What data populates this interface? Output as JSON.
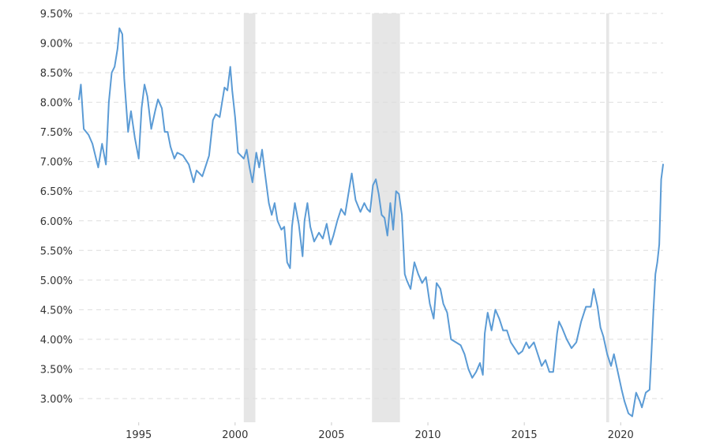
{
  "chart_data": {
    "type": "line",
    "title": "",
    "xlabel": "",
    "ylabel": "",
    "xlim": [
      1991.9,
      2022.2
    ],
    "ylim": [
      2.6,
      9.5
    ],
    "y_ticks": [
      3.0,
      3.5,
      4.0,
      4.5,
      5.0,
      5.5,
      6.0,
      6.5,
      7.0,
      7.5,
      8.0,
      8.5,
      9.0,
      9.5
    ],
    "y_tick_labels": [
      "3.00%",
      "3.50%",
      "4.00%",
      "4.50%",
      "5.00%",
      "5.50%",
      "6.00%",
      "6.50%",
      "7.00%",
      "7.50%",
      "8.00%",
      "8.50%",
      "9.00%",
      "9.50%"
    ],
    "x_ticks": [
      1995,
      2000,
      2005,
      2010,
      2015,
      2020
    ],
    "x_tick_labels": [
      "1995",
      "2000",
      "2005",
      "2010",
      "2015",
      "2020"
    ],
    "grid": true,
    "line_color": "#5b9bd5",
    "grid_color": "#dddddd",
    "shade_color": "#e6e6e6",
    "shaded_periods": [
      [
        2000.45,
        2001.05
      ],
      [
        2007.1,
        2008.55
      ],
      [
        2019.25,
        2019.4
      ]
    ],
    "series": [
      {
        "name": "",
        "x": [
          1991.9,
          1992.0,
          1992.15,
          1992.4,
          1992.6,
          1992.9,
          1993.1,
          1993.3,
          1993.45,
          1993.6,
          1993.75,
          1993.9,
          1994.0,
          1994.15,
          1994.25,
          1994.45,
          1994.6,
          1994.8,
          1995.0,
          1995.15,
          1995.3,
          1995.45,
          1995.65,
          1995.85,
          1996.0,
          1996.2,
          1996.35,
          1996.5,
          1996.65,
          1996.85,
          1997.0,
          1997.3,
          1997.6,
          1997.85,
          1998.0,
          1998.3,
          1998.5,
          1998.65,
          1998.85,
          1999.0,
          1999.2,
          1999.45,
          1999.6,
          1999.75,
          1999.85,
          2000.0,
          2000.15,
          2000.3,
          2000.45,
          2000.6,
          2000.75,
          2000.9,
          2001.1,
          2001.25,
          2001.4,
          2001.55,
          2001.75,
          2001.9,
          2002.05,
          2002.2,
          2002.4,
          2002.55,
          2002.7,
          2002.85,
          2002.95,
          2003.1,
          2003.3,
          2003.5,
          2003.6,
          2003.75,
          2003.9,
          2004.1,
          2004.35,
          2004.55,
          2004.75,
          2004.95,
          2005.1,
          2005.3,
          2005.5,
          2005.7,
          2005.85,
          2006.05,
          2006.25,
          2006.5,
          2006.7,
          2006.85,
          2007.0,
          2007.15,
          2007.3,
          2007.45,
          2007.6,
          2007.75,
          2007.9,
          2008.05,
          2008.2,
          2008.35,
          2008.5,
          2008.65,
          2008.8,
          2008.9,
          2009.1,
          2009.3,
          2009.5,
          2009.7,
          2009.9,
          2010.1,
          2010.3,
          2010.45,
          2010.65,
          2010.8,
          2011.0,
          2011.2,
          2011.45,
          2011.7,
          2011.9,
          2012.1,
          2012.3,
          2012.5,
          2012.7,
          2012.85,
          2012.95,
          2013.1,
          2013.3,
          2013.5,
          2013.7,
          2013.9,
          2014.1,
          2014.3,
          2014.5,
          2014.7,
          2014.9,
          2015.1,
          2015.25,
          2015.5,
          2015.7,
          2015.9,
          2016.1,
          2016.3,
          2016.5,
          2016.7,
          2016.8,
          2016.95,
          2017.2,
          2017.45,
          2017.7,
          2017.95,
          2018.2,
          2018.45,
          2018.6,
          2018.8,
          2018.95,
          2019.1,
          2019.3,
          2019.5,
          2019.65,
          2019.85,
          2020.05,
          2020.2,
          2020.4,
          2020.6,
          2020.8,
          2021.0,
          2021.1,
          2021.3,
          2021.5,
          2021.6,
          2021.7,
          2021.8,
          2021.9,
          2022.0,
          2022.1,
          2022.2
        ],
        "y": [
          8.05,
          8.3,
          7.55,
          7.45,
          7.3,
          6.9,
          7.3,
          6.95,
          8.0,
          8.5,
          8.6,
          8.9,
          9.25,
          9.15,
          8.4,
          7.5,
          7.85,
          7.4,
          7.05,
          7.9,
          8.3,
          8.1,
          7.55,
          7.85,
          8.05,
          7.9,
          7.5,
          7.5,
          7.25,
          7.05,
          7.15,
          7.1,
          6.95,
          6.65,
          6.85,
          6.75,
          6.95,
          7.1,
          7.7,
          7.8,
          7.75,
          8.25,
          8.2,
          8.6,
          8.2,
          7.75,
          7.15,
          7.1,
          7.05,
          7.2,
          6.9,
          6.65,
          7.15,
          6.9,
          7.2,
          6.8,
          6.3,
          6.1,
          6.3,
          6.0,
          5.85,
          5.9,
          5.3,
          5.2,
          5.9,
          6.3,
          5.95,
          5.4,
          6.0,
          6.3,
          5.9,
          5.65,
          5.8,
          5.7,
          5.95,
          5.6,
          5.75,
          6.0,
          6.2,
          6.1,
          6.4,
          6.8,
          6.35,
          6.15,
          6.3,
          6.2,
          6.15,
          6.6,
          6.7,
          6.45,
          6.1,
          6.05,
          5.75,
          6.3,
          5.85,
          6.5,
          6.45,
          6.1,
          5.1,
          5.0,
          4.85,
          5.3,
          5.1,
          4.95,
          5.05,
          4.6,
          4.35,
          4.95,
          4.85,
          4.6,
          4.45,
          4.0,
          3.95,
          3.9,
          3.75,
          3.5,
          3.35,
          3.45,
          3.6,
          3.4,
          4.1,
          4.45,
          4.15,
          4.5,
          4.35,
          4.15,
          4.15,
          3.95,
          3.85,
          3.75,
          3.8,
          3.95,
          3.85,
          3.95,
          3.75,
          3.55,
          3.65,
          3.45,
          3.45,
          4.1,
          4.3,
          4.2,
          4.0,
          3.85,
          3.95,
          4.3,
          4.55,
          4.55,
          4.85,
          4.55,
          4.2,
          4.05,
          3.75,
          3.55,
          3.75,
          3.45,
          3.15,
          2.95,
          2.75,
          2.7,
          3.1,
          2.95,
          2.85,
          3.1,
          3.15,
          3.8,
          4.5,
          5.1,
          5.3,
          5.6,
          6.7,
          6.95
        ]
      }
    ]
  }
}
